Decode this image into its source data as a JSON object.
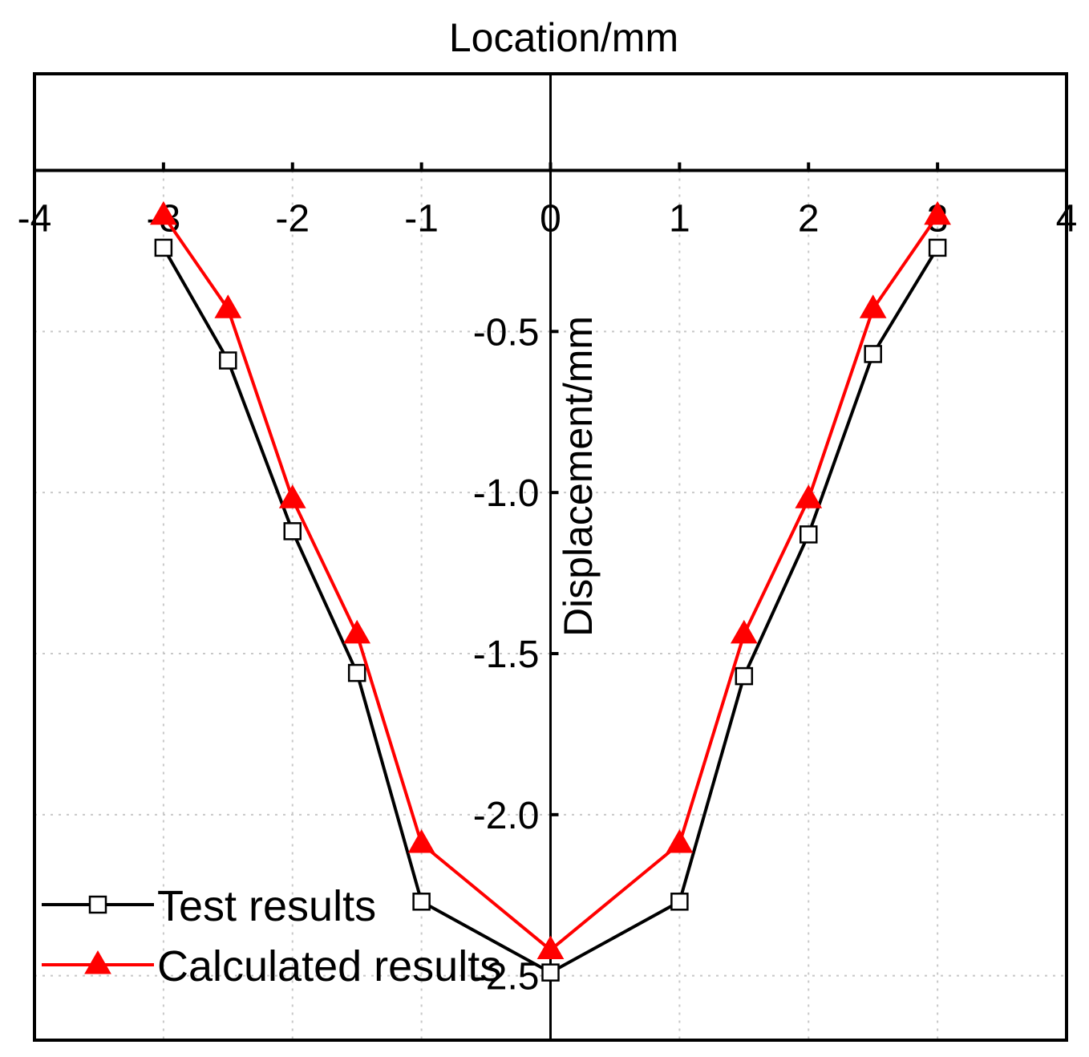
{
  "chart_data": {
    "type": "line",
    "x_axis_title": "Location/mm",
    "y_axis_title": "Displacement/mm",
    "xlim": [
      -4,
      4
    ],
    "ylim": [
      -2.7,
      0.3
    ],
    "x_ticks": [
      -4,
      -3,
      -2,
      -1,
      0,
      1,
      2,
      3,
      4
    ],
    "x_tick_labels": [
      "-4",
      "-3",
      "-2",
      "-1",
      "0",
      "1",
      "2",
      "3",
      "4"
    ],
    "y_ticks": [
      -2.5,
      -2.0,
      -1.5,
      -1.0,
      -0.5
    ],
    "y_tick_labels": [
      "-2.5",
      "-2.0",
      "-1.5",
      "-1.0",
      "-0.5"
    ],
    "grid": true,
    "legend_position": "bottom-left",
    "series": [
      {
        "name": "Test results",
        "color": "#000000",
        "marker": "open-square",
        "x": [
          -3,
          -2.5,
          -2,
          -1.5,
          -1,
          0,
          1,
          1.5,
          2,
          2.5,
          3
        ],
        "y": [
          -0.24,
          -0.59,
          -1.12,
          -1.56,
          -2.27,
          -2.49,
          -2.27,
          -1.57,
          -1.13,
          -0.57,
          -0.24
        ]
      },
      {
        "name": "Calculated results",
        "color": "#ff0000",
        "marker": "filled-triangle",
        "x": [
          -3,
          -2.5,
          -2,
          -1.5,
          -1,
          0,
          1,
          1.5,
          2,
          2.5,
          3
        ],
        "y": [
          -0.14,
          -0.43,
          -1.02,
          -1.44,
          -2.09,
          -2.42,
          -2.09,
          -1.44,
          -1.02,
          -0.43,
          -0.14
        ]
      }
    ]
  }
}
